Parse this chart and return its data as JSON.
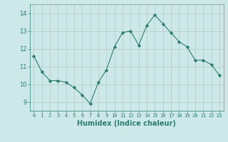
{
  "x": [
    0,
    1,
    2,
    3,
    4,
    5,
    6,
    7,
    8,
    9,
    10,
    11,
    12,
    13,
    14,
    15,
    16,
    17,
    18,
    19,
    20,
    21,
    22,
    23
  ],
  "y": [
    11.6,
    10.7,
    10.2,
    10.2,
    10.1,
    9.8,
    9.4,
    8.9,
    10.1,
    10.8,
    12.1,
    12.9,
    13.0,
    12.2,
    13.3,
    13.9,
    13.4,
    12.9,
    12.4,
    12.1,
    11.35,
    11.35,
    11.1,
    10.5
  ],
  "line_color": "#2d7d6e",
  "marker": "D",
  "marker_size": 2.2,
  "bg_color": "#cce8e8",
  "grid_color": "#b8c8c8",
  "xlabel": "Humidex (Indice chaleur)",
  "xlim": [
    -0.5,
    23.5
  ],
  "ylim": [
    8.5,
    14.5
  ],
  "yticks": [
    9,
    10,
    11,
    12,
    13,
    14
  ],
  "xticks": [
    0,
    1,
    2,
    3,
    4,
    5,
    6,
    7,
    8,
    9,
    10,
    11,
    12,
    13,
    14,
    15,
    16,
    17,
    18,
    19,
    20,
    21,
    22,
    23
  ],
  "tick_color": "#2d7d6e",
  "xtick_fontsize": 5.0,
  "ytick_fontsize": 6.0,
  "xlabel_fontsize": 7.0
}
